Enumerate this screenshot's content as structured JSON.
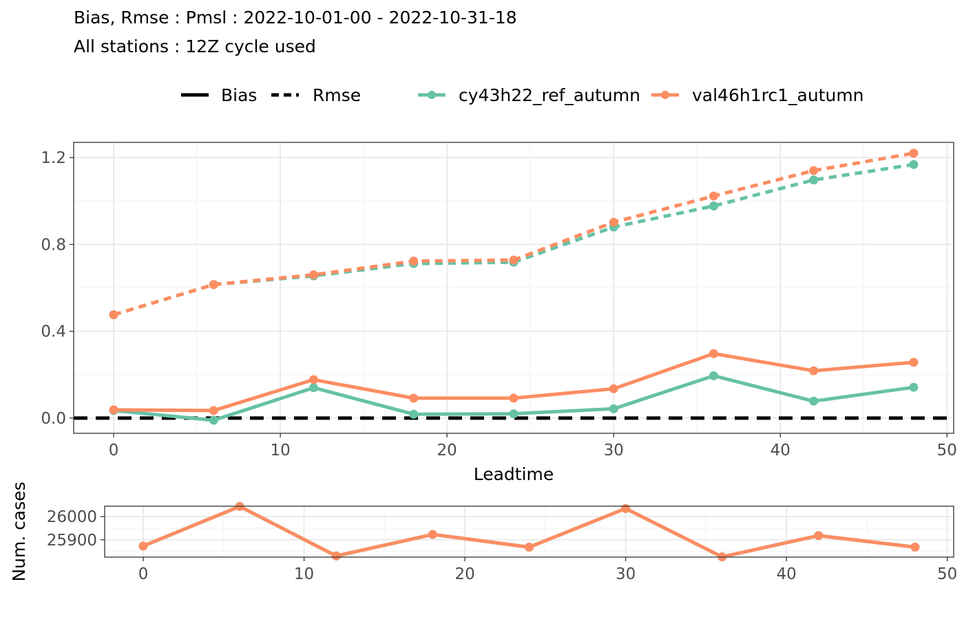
{
  "title_line1": "Bias, Rmse : Pmsl : 2022-10-01-00 - 2022-10-31-18",
  "title_line2": "All stations : 12Z cycle used",
  "legend": {
    "linetype": [
      {
        "label": "Bias",
        "dash": "solid"
      },
      {
        "label": "Rmse",
        "dash": "dashed"
      }
    ],
    "colour": [
      {
        "label": "cy43h22_ref_autumn",
        "color": "#66c2a5"
      },
      {
        "label": "val46h1rc1_autumn",
        "color": "#fc8d62"
      }
    ]
  },
  "chart_data": [
    {
      "type": "line",
      "xlabel": "Leadtime",
      "ylabel": "",
      "xlim": [
        -2.4,
        50.4
      ],
      "ylim": [
        -0.07,
        1.27
      ],
      "xticks": [
        0,
        10,
        20,
        30,
        40,
        50
      ],
      "yticks": [
        0.0,
        0.4,
        0.8,
        1.2
      ],
      "ytick_labels": [
        "0.0",
        "0.4",
        "0.8",
        "1.2"
      ],
      "grid": true,
      "hline": {
        "y": 0,
        "style": "dashed",
        "color": "#000000"
      },
      "x": [
        0,
        6,
        12,
        18,
        24,
        30,
        36,
        42,
        48
      ],
      "series": [
        {
          "name": "cy43h22_ref_autumn",
          "metric": "Bias",
          "color": "#66c2a5",
          "dash": "solid",
          "values": [
            0.035,
            -0.01,
            0.14,
            0.018,
            0.02,
            0.043,
            0.195,
            0.078,
            0.142
          ]
        },
        {
          "name": "val46h1rc1_autumn",
          "metric": "Bias",
          "color": "#fc8d62",
          "dash": "solid",
          "values": [
            0.038,
            0.035,
            0.177,
            0.092,
            0.092,
            0.135,
            0.297,
            0.218,
            0.257
          ]
        },
        {
          "name": "cy43h22_ref_autumn",
          "metric": "Rmse",
          "color": "#66c2a5",
          "dash": "dashed",
          "values": [
            0.476,
            0.615,
            0.655,
            0.712,
            0.718,
            0.88,
            0.977,
            1.097,
            1.168
          ]
        },
        {
          "name": "val46h1rc1_autumn",
          "metric": "Rmse",
          "color": "#fc8d62",
          "dash": "dashed",
          "values": [
            0.476,
            0.615,
            0.66,
            0.723,
            0.728,
            0.902,
            1.023,
            1.14,
            1.22
          ]
        }
      ]
    },
    {
      "type": "line",
      "xlabel": "",
      "ylabel": "Num. cases",
      "xlim": [
        -2.4,
        50.4
      ],
      "ylim": [
        25825,
        26045
      ],
      "xticks": [
        0,
        10,
        20,
        30,
        40,
        50
      ],
      "yticks": [
        25900,
        26000
      ],
      "ytick_labels": [
        "25900",
        "26000"
      ],
      "grid": true,
      "x": [
        0,
        6,
        12,
        18,
        24,
        30,
        36,
        42,
        48
      ],
      "series": [
        {
          "name": "cy43h22_ref_autumn",
          "color": "#66c2a5",
          "values": [
            25873,
            26044,
            25830,
            25923,
            25868,
            26035,
            25826,
            25918,
            25868
          ]
        },
        {
          "name": "val46h1rc1_autumn",
          "color": "#fc8d62",
          "values": [
            25873,
            26044,
            25830,
            25923,
            25868,
            26035,
            25826,
            25918,
            25868
          ]
        }
      ]
    }
  ]
}
